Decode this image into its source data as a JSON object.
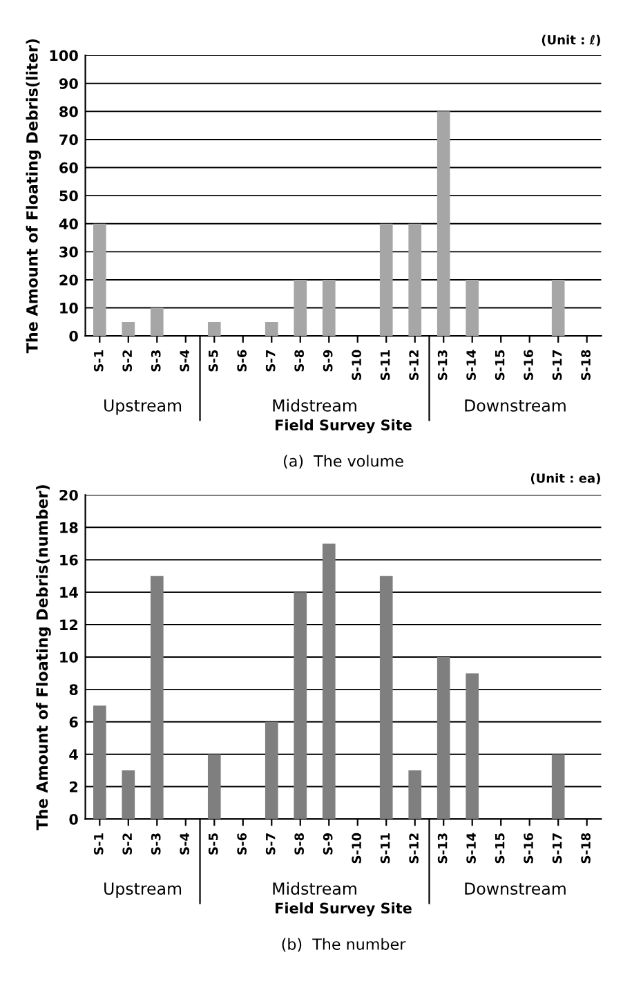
{
  "chart_data": [
    {
      "type": "bar",
      "ylabel": "The Amount of Floating Debris(liter)",
      "xlabel": "Field Survey Site",
      "categories": [
        "S-1",
        "S-2",
        "S-3",
        "S-4",
        "S-5",
        "S-6",
        "S-7",
        "S-8",
        "S-9",
        "S-10",
        "S-11",
        "S-12",
        "S-13",
        "S-14",
        "S-15",
        "S-16",
        "S-17",
        "S-18"
      ],
      "values": [
        40,
        5,
        10,
        0,
        5,
        0,
        5,
        20,
        20,
        0,
        40,
        40,
        80,
        20,
        0,
        0,
        20,
        0
      ],
      "color": "#a6a6a6",
      "ylim": [
        0,
        100
      ],
      "yticks": [
        0,
        10,
        20,
        30,
        40,
        50,
        60,
        70,
        80,
        90,
        100
      ],
      "grid": "y",
      "legend": false,
      "annotations": [
        "(Unit : ℓ)",
        "Upstream",
        "Midstream",
        "Downstream",
        "(a)  The volume"
      ]
    },
    {
      "type": "bar",
      "ylabel": "The Amount of Floating Debris(number)",
      "xlabel": "Field Survey Site",
      "categories": [
        "S-1",
        "S-2",
        "S-3",
        "S-4",
        "S-5",
        "S-6",
        "S-7",
        "S-8",
        "S-9",
        "S-10",
        "S-11",
        "S-12",
        "S-13",
        "S-14",
        "S-15",
        "S-16",
        "S-17",
        "S-18"
      ],
      "values": [
        7,
        3,
        15,
        0,
        4,
        0,
        6,
        14,
        17,
        0,
        15,
        3,
        10,
        9,
        0,
        0,
        4,
        0
      ],
      "color": "#7f7f7f",
      "ylim": [
        0,
        20
      ],
      "yticks": [
        0,
        2,
        4,
        6,
        8,
        10,
        12,
        14,
        16,
        18,
        20
      ],
      "grid": "y",
      "legend": false,
      "annotations": [
        "(Unit : ea)",
        "Upstream",
        "Midstream",
        "Downstream",
        "(b)  The number"
      ]
    }
  ]
}
